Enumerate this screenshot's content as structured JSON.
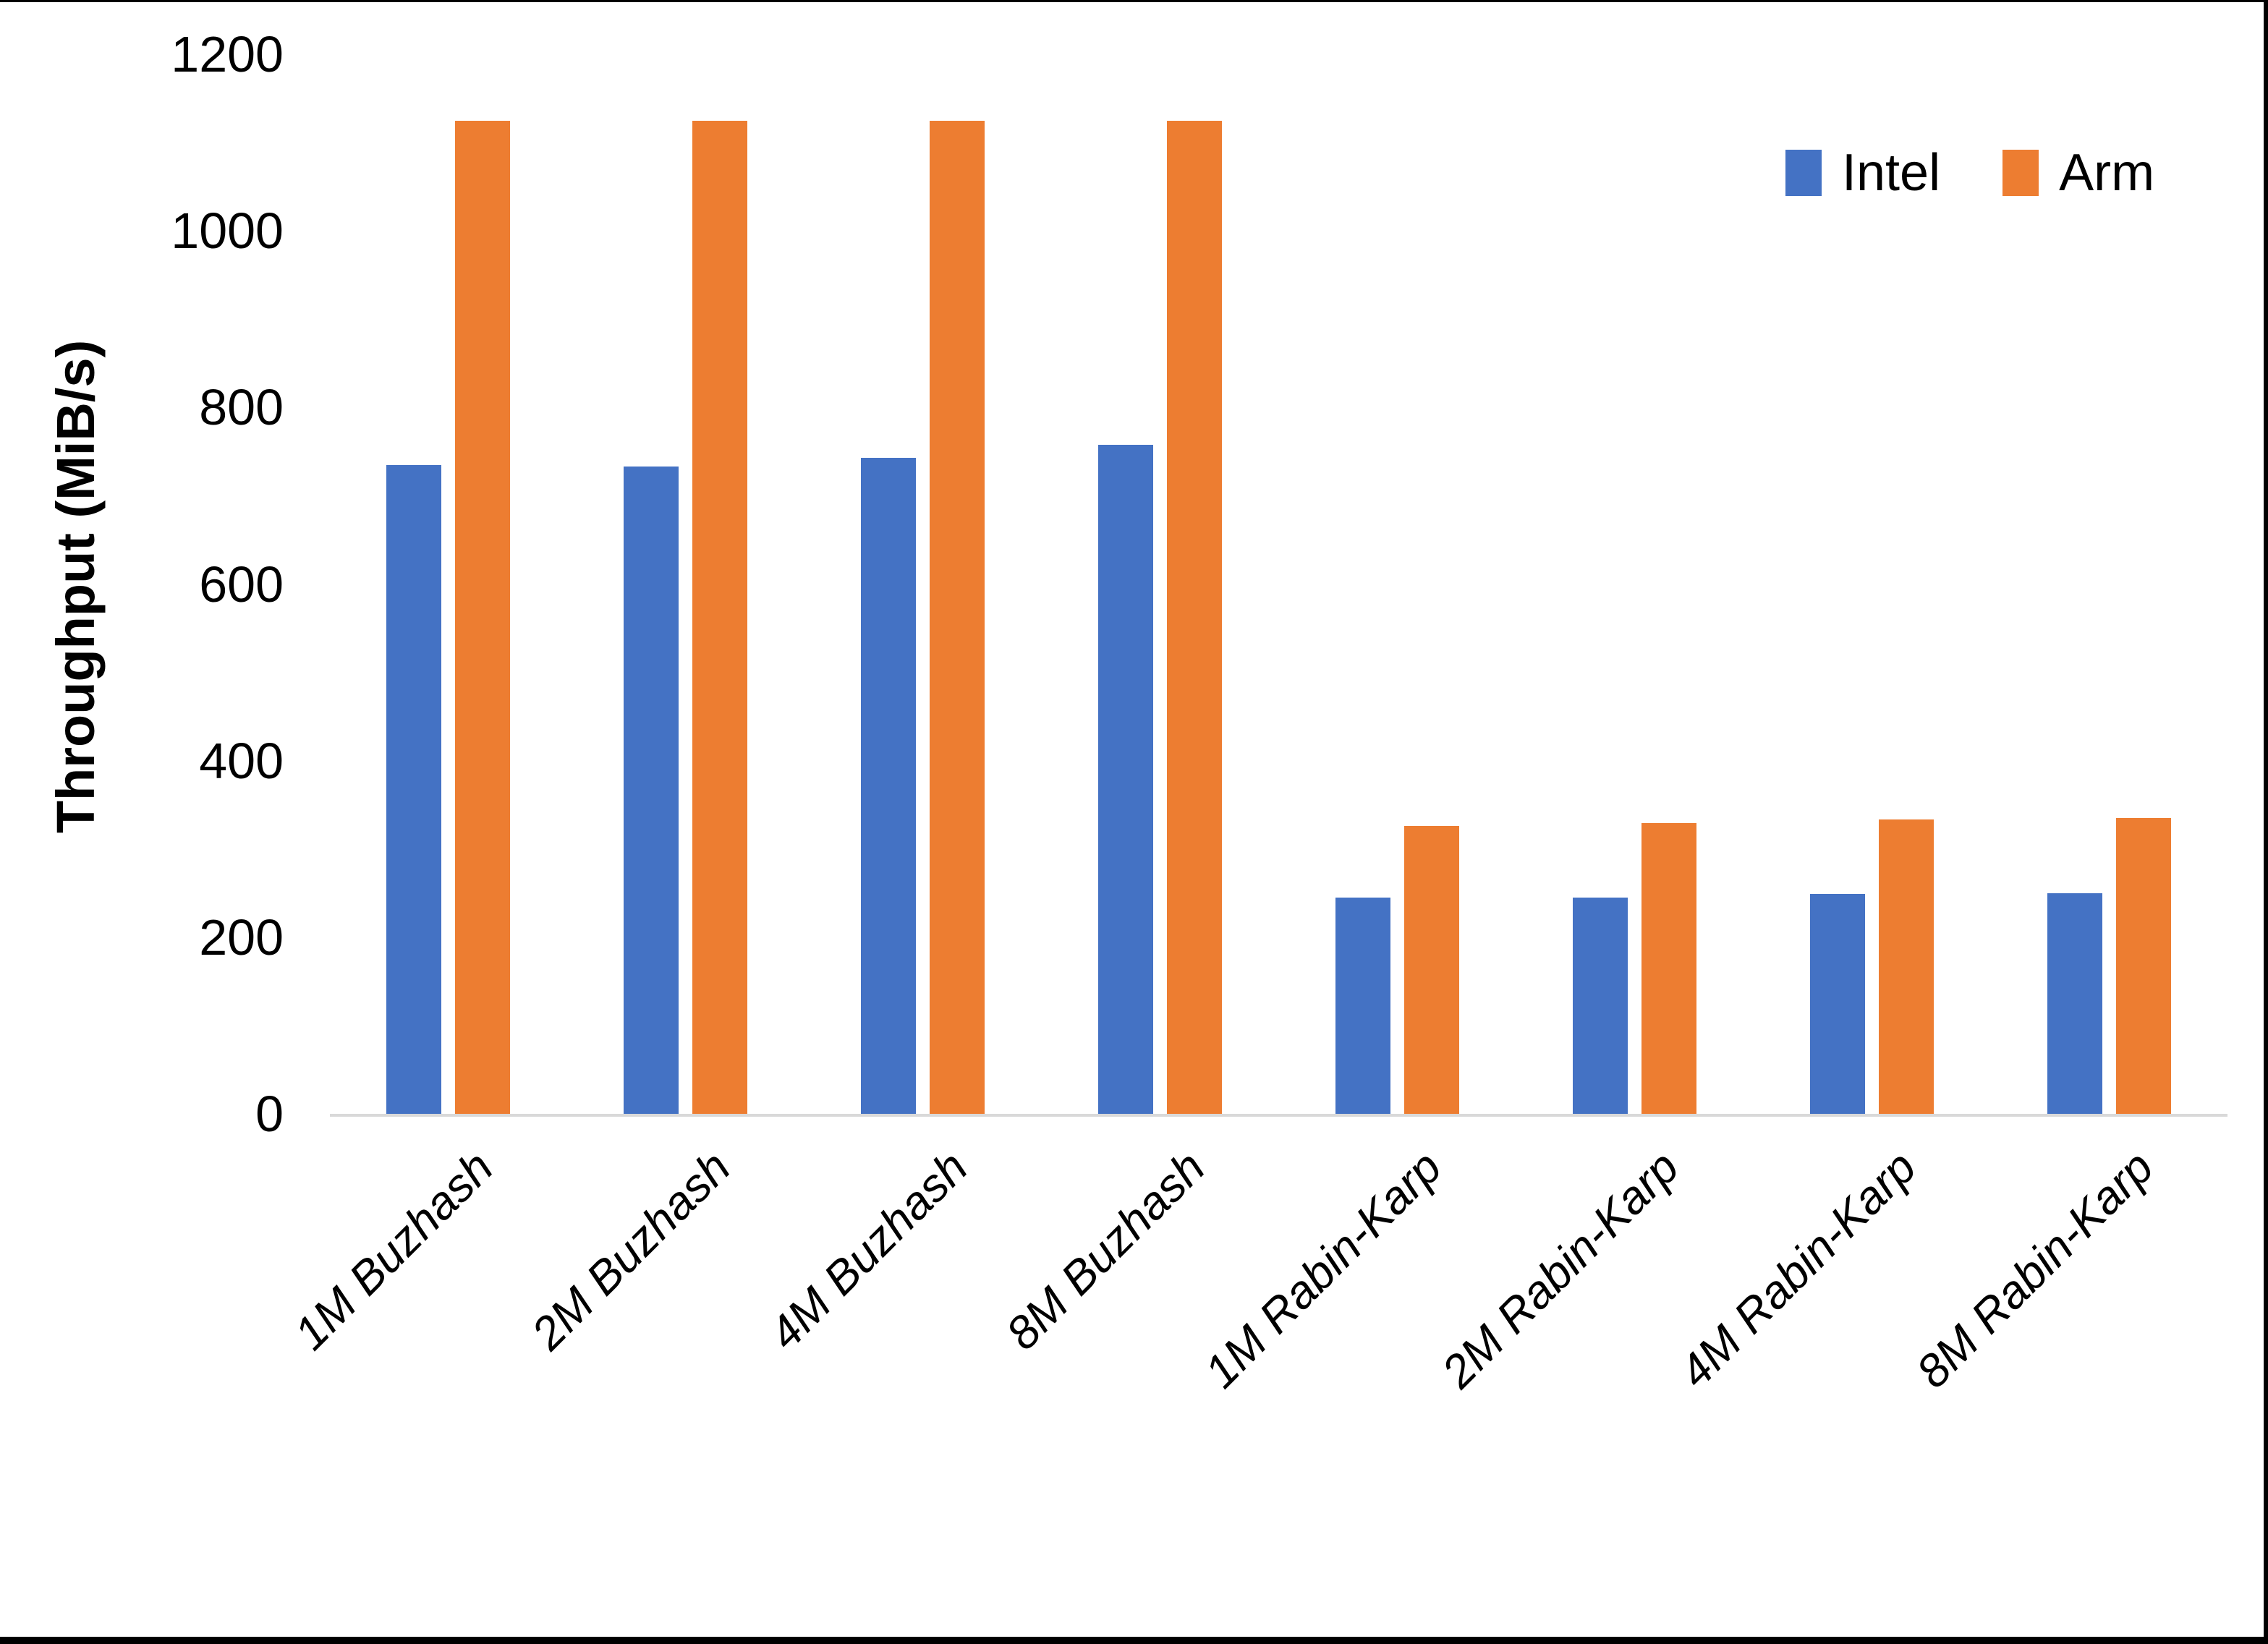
{
  "chart_data": {
    "type": "bar",
    "title": "",
    "xlabel": "",
    "ylabel": "Throughput (MiB/s)",
    "ylim": [
      0,
      1200
    ],
    "yticks": [
      0,
      200,
      400,
      600,
      800,
      1000,
      1200
    ],
    "grid": false,
    "legend_position": "top-right",
    "axis_line_color": "#d9d9d9",
    "categories": [
      "1M Buzhash",
      "2M Buzhash",
      "4M Buzhash",
      "8M Buzhash",
      "1M Rabin-Karp",
      "2M Rabin-Karp",
      "4M Rabin-Karp",
      "8M Rabin-Karp"
    ],
    "series": [
      {
        "name": "Intel",
        "color": "#4472c4",
        "values": [
          735,
          733,
          743,
          758,
          245,
          245,
          249,
          250
        ]
      },
      {
        "name": "Arm",
        "color": "#ed7d31",
        "values": [
          1125,
          1125,
          1125,
          1125,
          326,
          329,
          333,
          335
        ]
      }
    ]
  }
}
